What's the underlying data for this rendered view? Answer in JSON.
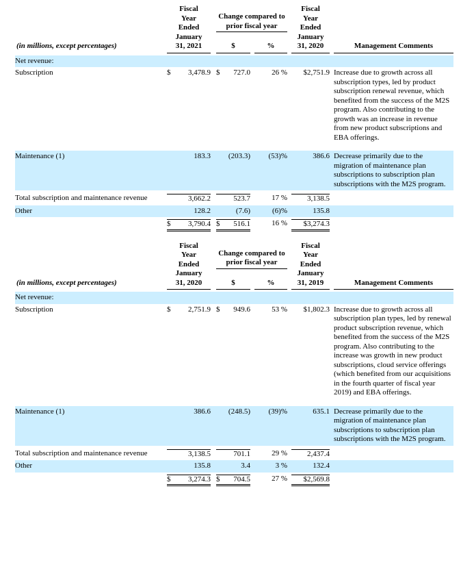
{
  "colors": {
    "highlight_band": "#cceeff",
    "text": "#000000",
    "rule": "#000000"
  },
  "tables": [
    {
      "header": {
        "meta_label": "(in millions, except percentages)",
        "fy_current": "Fiscal\nYear\nEnded\nJanuary\n31, 2021",
        "change_label": "Change compared to\nprior fiscal year",
        "change_dollar": "$",
        "change_pct": "%",
        "fy_prior": "Fiscal\nYear\nEnded\nJanuary\n31, 2020",
        "mgmt": "Management Comments"
      },
      "section_label": "Net revenue:",
      "rows": [
        {
          "label": "Subscription",
          "cur1": "$",
          "val1": "3,478.9",
          "cur2": "$",
          "val2": "727.0",
          "pct": "26 %",
          "cur3": "$",
          "val3": "2,751.9",
          "comment": "Increase due to growth across all subscription types, led by product subscription renewal revenue, which benefited from the success of the M2S program. Also contributing to the growth was an increase in revenue from new product subscriptions and EBA offerings."
        },
        {
          "label": "Maintenance (1)",
          "val1": "183.3",
          "val2": "(203.3)",
          "pct": "(53)%",
          "val3": "386.6",
          "comment": "Decrease primarily due to the migration of maintenance plan subscriptions to subscription plan subscriptions with the M2S program."
        },
        {
          "label": "Total subscription and maintenance revenue",
          "val1": "3,662.2",
          "val2": "523.7",
          "pct": "17 %",
          "val3": "3,138.5"
        },
        {
          "label": "Other",
          "val1": "128.2",
          "val2": "(7.6)",
          "pct": "(6)%",
          "val3": "135.8"
        },
        {
          "cur1": "$",
          "val1": "3,790.4",
          "cur2": "$",
          "val2": "516.1",
          "pct": "16 %",
          "cur3": "$",
          "val3": "3,274.3"
        }
      ]
    },
    {
      "header": {
        "meta_label": "(in millions, except percentages)",
        "fy_current": "Fiscal\nYear\nEnded\nJanuary\n31, 2020",
        "change_label": "Change compared to\nprior fiscal year",
        "change_dollar": "$",
        "change_pct": "%",
        "fy_prior": "Fiscal\nYear\nEnded\nJanuary\n31, 2019",
        "mgmt": "Management Comments"
      },
      "section_label": "Net revenue:",
      "rows": [
        {
          "label": "Subscription",
          "cur1": "$",
          "val1": "2,751.9",
          "cur2": "$",
          "val2": "949.6",
          "pct": "53 %",
          "cur3": "$",
          "val3": "1,802.3",
          "comment": "Increase due to growth across all subscription plan types, led by renewal product subscription revenue, which benefited from the success of the M2S program. Also contributing to the increase was growth in new product subscriptions, cloud service offerings (which benefited from our acquisitions in the fourth quarter of fiscal year 2019) and EBA offerings."
        },
        {
          "label": "Maintenance (1)",
          "val1": "386.6",
          "val2": "(248.5)",
          "pct": "(39)%",
          "val3": "635.1",
          "comment": "Decrease primarily due to the migration of maintenance plan subscriptions to subscription plan subscriptions with the M2S program."
        },
        {
          "label": "Total subscription and maintenance revenue",
          "val1": "3,138.5",
          "val2": "701.1",
          "pct": "29 %",
          "val3": "2,437.4"
        },
        {
          "label": "Other",
          "val1": "135.8",
          "val2": "3.4",
          "pct": "3 %",
          "val3": "132.4"
        },
        {
          "cur1": "$",
          "val1": "3,274.3",
          "cur2": "$",
          "val2": "704.5",
          "pct": "27 %",
          "cur3": "$",
          "val3": "2,569.8"
        }
      ]
    }
  ]
}
